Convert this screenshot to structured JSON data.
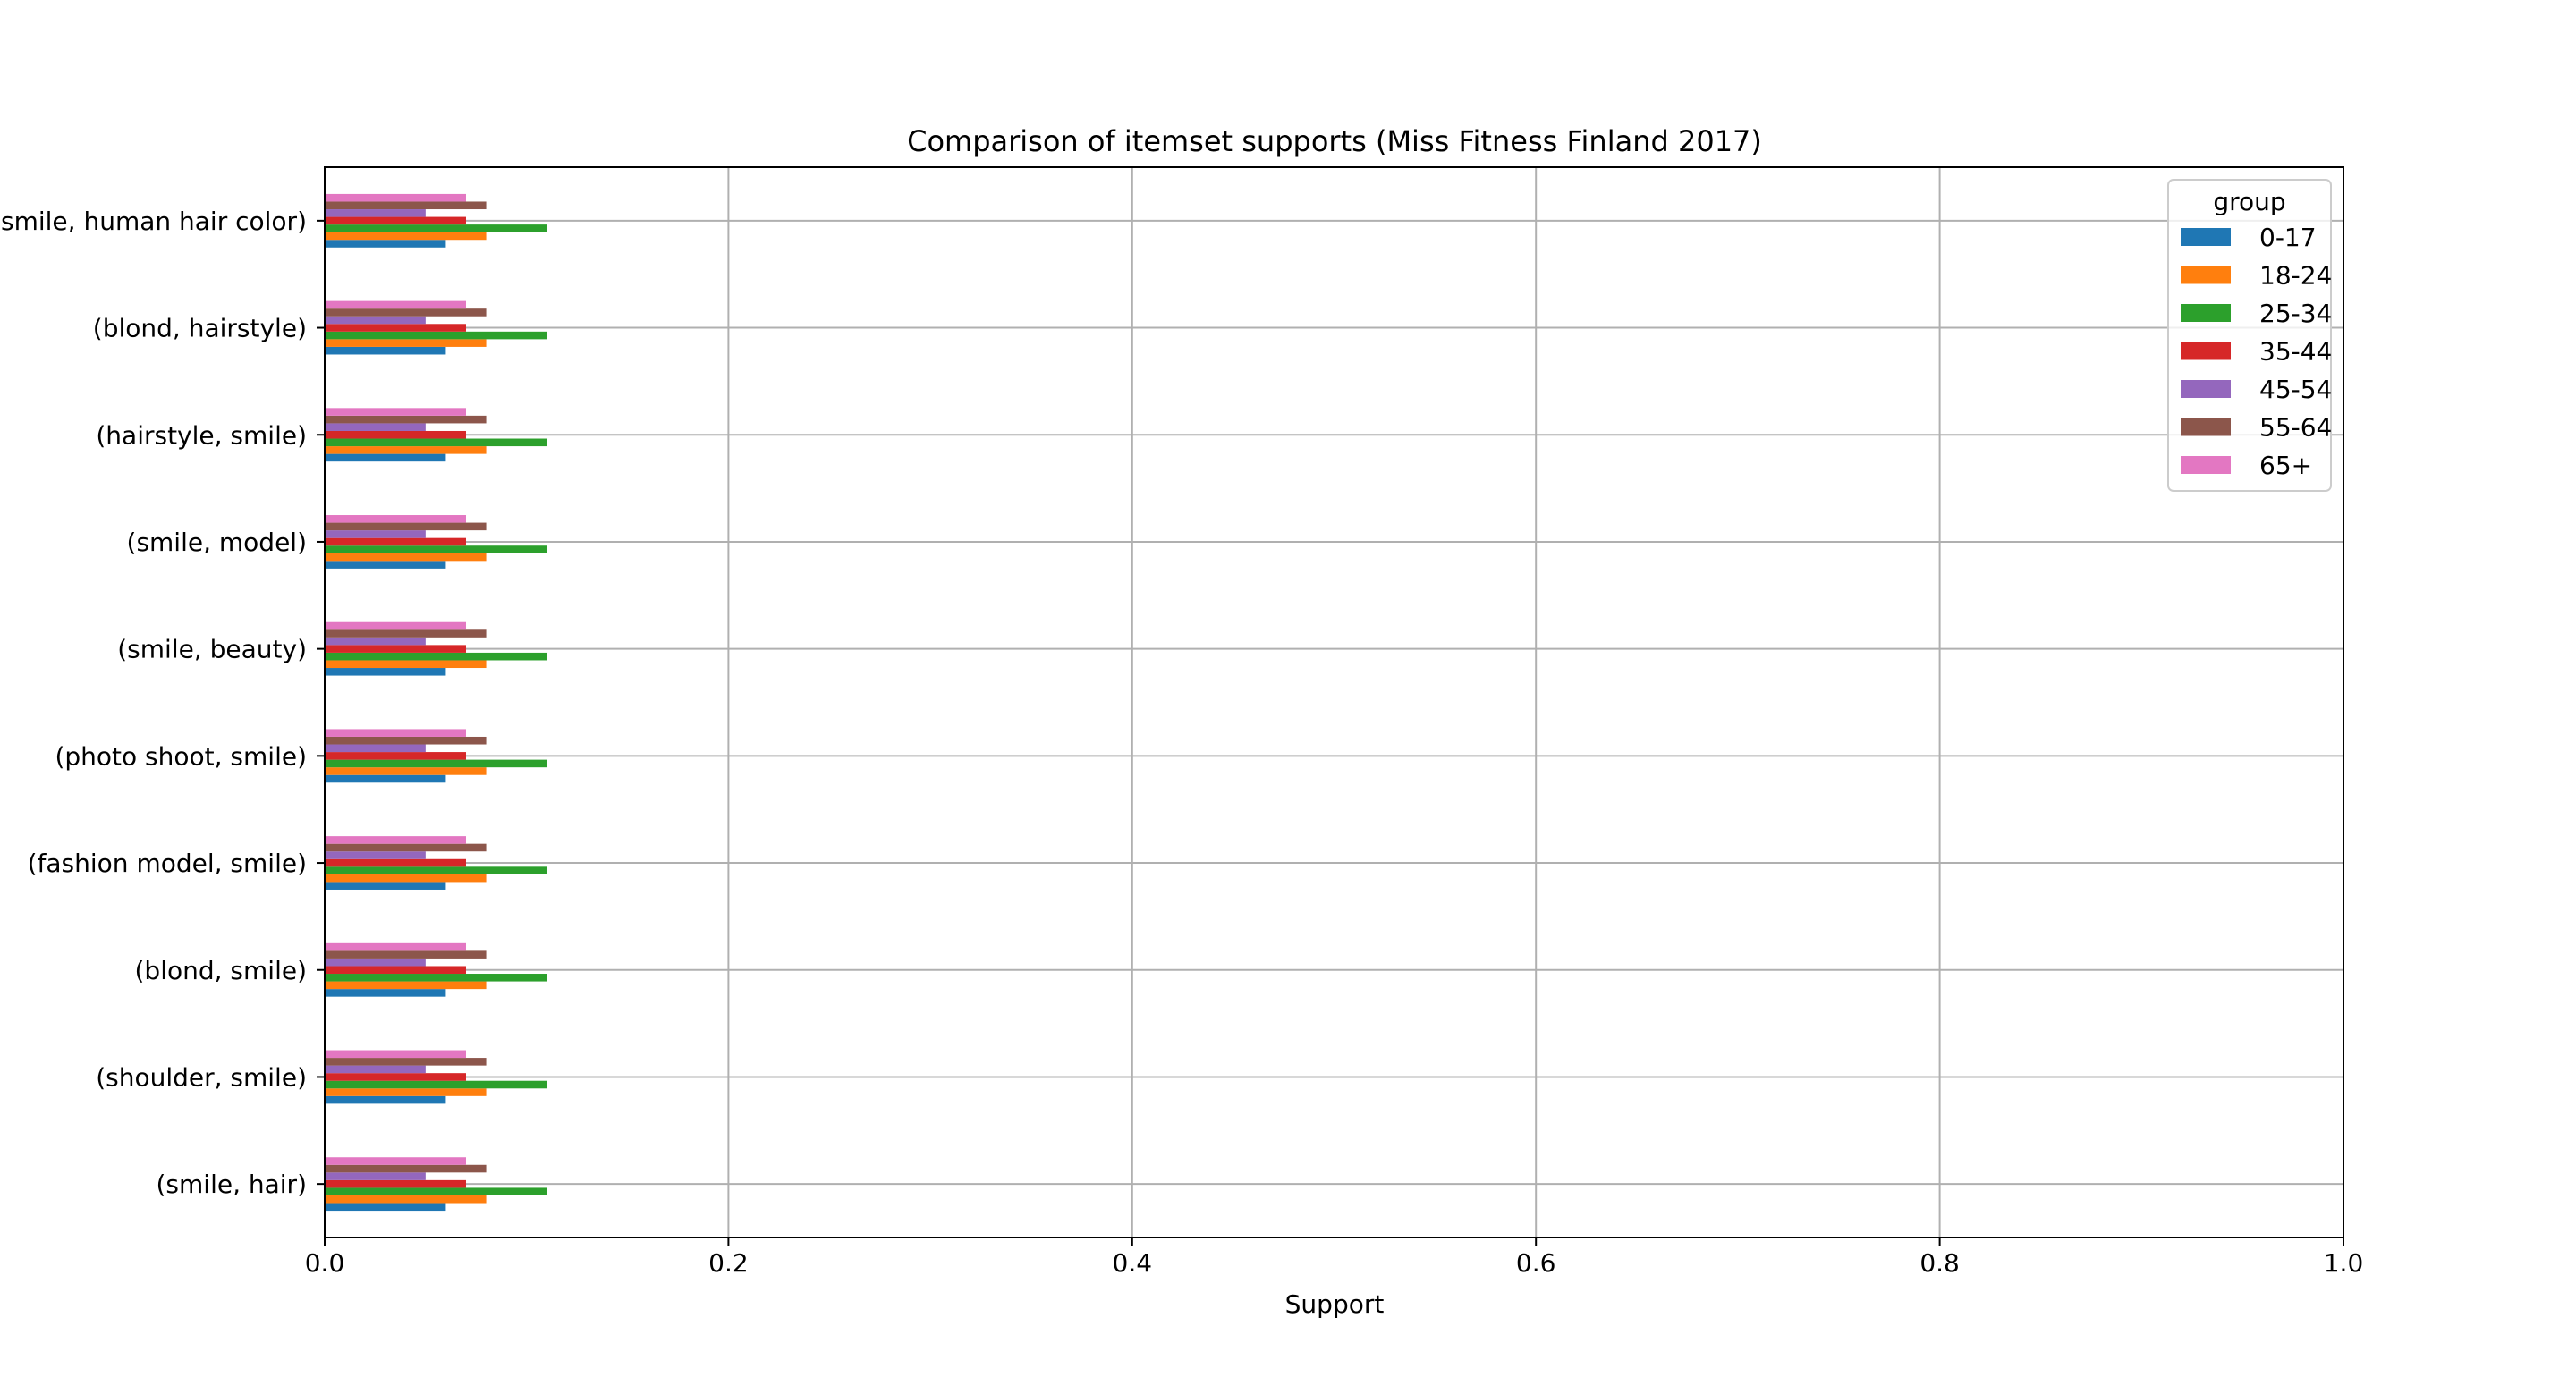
{
  "chart_data": {
    "type": "bar",
    "orientation": "horizontal",
    "title": "Comparison of itemset supports (Miss Fitness Finland 2017)",
    "xlabel": "Support",
    "ylabel": "",
    "xlim": [
      0.0,
      1.0
    ],
    "xticks": [
      "0.0",
      "0.2",
      "0.4",
      "0.6",
      "0.8",
      "1.0"
    ],
    "grid": true,
    "legend": {
      "title": "group",
      "placement": "top-right"
    },
    "categories": [
      "(smile, hair)",
      "(shoulder, smile)",
      "(blond, smile)",
      "(fashion model, smile)",
      "(photo shoot, smile)",
      "(smile, beauty)",
      "(smile, model)",
      "(hairstyle, smile)",
      "(blond, hairstyle)",
      "(smile, human hair color)"
    ],
    "series": [
      {
        "name": "0-17",
        "color": "#1f77b4",
        "values": [
          0.06,
          0.06,
          0.06,
          0.06,
          0.06,
          0.06,
          0.06,
          0.06,
          0.06,
          0.06
        ]
      },
      {
        "name": "18-24",
        "color": "#ff7f0e",
        "values": [
          0.08,
          0.08,
          0.08,
          0.08,
          0.08,
          0.08,
          0.08,
          0.08,
          0.08,
          0.08
        ]
      },
      {
        "name": "25-34",
        "color": "#2ca02c",
        "values": [
          0.11,
          0.11,
          0.11,
          0.11,
          0.11,
          0.11,
          0.11,
          0.11,
          0.11,
          0.11
        ]
      },
      {
        "name": "35-44",
        "color": "#d62728",
        "values": [
          0.07,
          0.07,
          0.07,
          0.07,
          0.07,
          0.07,
          0.07,
          0.07,
          0.07,
          0.07
        ]
      },
      {
        "name": "45-54",
        "color": "#9467bd",
        "values": [
          0.05,
          0.05,
          0.05,
          0.05,
          0.05,
          0.05,
          0.05,
          0.05,
          0.05,
          0.05
        ]
      },
      {
        "name": "55-64",
        "color": "#8c564b",
        "values": [
          0.08,
          0.08,
          0.08,
          0.08,
          0.08,
          0.08,
          0.08,
          0.08,
          0.08,
          0.08
        ]
      },
      {
        "name": "65+",
        "color": "#e377c2",
        "values": [
          0.07,
          0.07,
          0.07,
          0.07,
          0.07,
          0.07,
          0.07,
          0.07,
          0.07,
          0.07
        ]
      }
    ]
  }
}
